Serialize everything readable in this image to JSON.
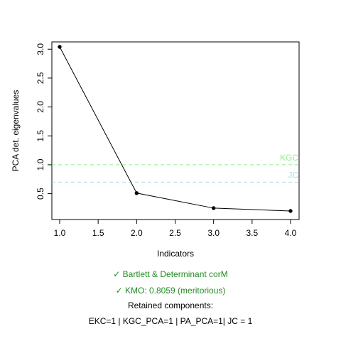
{
  "chart_data": {
    "type": "line",
    "xlabel": "Indicators",
    "ylabel": "PCA det. eigenvalues",
    "xlim": [
      1,
      4
    ],
    "ylim": [
      0.2,
      3.04
    ],
    "x_ticks": [
      "1.0",
      "1.5",
      "2.0",
      "2.5",
      "3.0",
      "3.5",
      "4.0"
    ],
    "y_ticks": [
      "0.5",
      "1.0",
      "1.5",
      "2.0",
      "2.5",
      "3.0"
    ],
    "grid": false,
    "legend": "none",
    "series": [
      {
        "x": [
          1,
          2,
          3,
          4
        ],
        "y": [
          3.04,
          0.51,
          0.25,
          0.2
        ],
        "color": "#000000"
      }
    ],
    "reference_lines": [
      {
        "label": "KGC",
        "y": 1.0,
        "color": "#90ee90",
        "style": "dashed"
      },
      {
        "label": "JC",
        "y": 0.7,
        "color": "#add8e6",
        "style": "dashed"
      }
    ]
  },
  "captions": {
    "bartlett": "✓ Bartlett & Determinant corM",
    "kmo": "✓ KMO: 0.8059 (meritorious)",
    "retained_title": "Retained components:",
    "retained_values": "EKC=1 | KGC_PCA=1 | PA_PCA=1| JC = 1",
    "pass_color": "#228b22"
  }
}
